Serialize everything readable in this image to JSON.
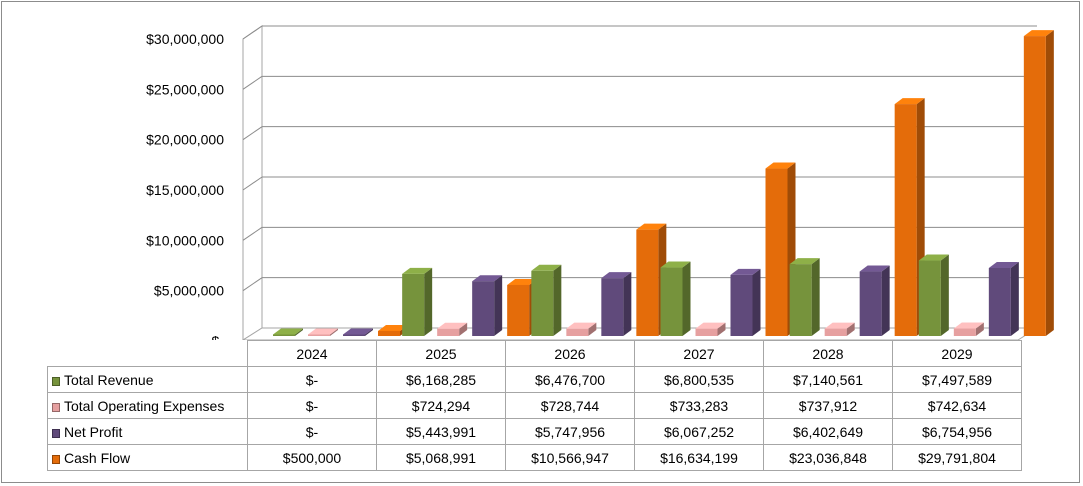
{
  "chart_data": {
    "type": "bar",
    "categories": [
      "2024",
      "2025",
      "2026",
      "2027",
      "2028",
      "2029"
    ],
    "series": [
      {
        "name": "Total Revenue",
        "color": "#76933c",
        "values": [
          0,
          6168285,
          6476700,
          6800535,
          7140561,
          7497589
        ],
        "labels": [
          "$-",
          "$6,168,285",
          "$6,476,700",
          "$6,800,535",
          "$7,140,561",
          "$7,497,589"
        ]
      },
      {
        "name": "Total Operating Expenses",
        "color": "#e6a0a0",
        "values": [
          0,
          724294,
          728744,
          733283,
          737912,
          742634
        ],
        "labels": [
          "$-",
          "$724,294",
          "$728,744",
          "$733,283",
          "$737,912",
          "$742,634"
        ]
      },
      {
        "name": "Net Profit",
        "color": "#604a7b",
        "values": [
          0,
          5443991,
          5747956,
          6067252,
          6402649,
          6754956
        ],
        "labels": [
          "$-",
          "$5,443,991",
          "$5,747,956",
          "$6,067,252",
          "$6,402,649",
          "$6,754,956"
        ]
      },
      {
        "name": "Cash Flow",
        "color": "#e46c0a",
        "values": [
          500000,
          5068991,
          10566947,
          16634199,
          23036848,
          29791804
        ],
        "labels": [
          "$500,000",
          "$5,068,991",
          "$10,566,947",
          "$16,634,199",
          "$23,036,848",
          "$29,791,804"
        ]
      }
    ],
    "ylim": [
      0,
      30000000
    ],
    "y_ticks": [
      0,
      5000000,
      10000000,
      15000000,
      20000000,
      25000000,
      30000000
    ],
    "y_tick_labels": [
      "$-",
      "$5,000,000",
      "$10,000,000",
      "$15,000,000",
      "$20,000,000",
      "$25,000,000",
      "$30,000,000"
    ],
    "grid": true,
    "style": "3d-clustered-column",
    "legend": "data-table-below"
  }
}
